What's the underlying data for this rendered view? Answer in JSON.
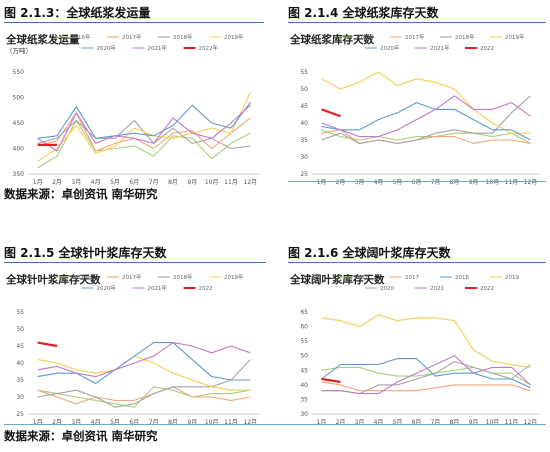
{
  "figures": [
    {
      "label": "图 2.1.3：全球纸浆发运量"
    },
    {
      "label": "图 2.1.4 全球纸浆库存天数"
    },
    {
      "label": "图 2.1.5 全球针叶浆库存天数"
    },
    {
      "label": "图 2.1.6 全球阔叶浆库存天数"
    }
  ],
  "source_top": "数据来源：卓创资讯  南华研究",
  "source_bottom": "数据来源：卓创资讯  南华研究",
  "chart_data": [
    {
      "type": "line",
      "title": "全球纸浆发运量",
      "unit": "（万吨）",
      "categories": [
        "1月",
        "2月",
        "3月",
        "4月",
        "5月",
        "6月",
        "7月",
        "8月",
        "9月",
        "10月",
        "11月",
        "12月"
      ],
      "ylim": [
        350,
        550
      ],
      "yticks": [
        350,
        400,
        450,
        500,
        550
      ],
      "legend_position": "top",
      "series": [
        {
          "name": "2016年",
          "color": "#a9cf7b",
          "values": [
            362,
            385,
            455,
            395,
            400,
            405,
            385,
            425,
            420,
            380,
            410,
            430
          ]
        },
        {
          "name": "2017年",
          "color": "#f0a77a",
          "values": [
            405,
            415,
            470,
            395,
            410,
            420,
            400,
            430,
            435,
            400,
            430,
            460
          ]
        },
        {
          "name": "2018年",
          "color": "#a5a5a5",
          "values": [
            410,
            420,
            455,
            420,
            420,
            455,
            410,
            440,
            410,
            420,
            400,
            405
          ]
        },
        {
          "name": "2019年",
          "color": "#f5cf52",
          "values": [
            375,
            400,
            445,
            390,
            405,
            440,
            425,
            420,
            430,
            440,
            430,
            510
          ]
        },
        {
          "name": "2020年",
          "color": "#5b9bd5",
          "values": [
            420,
            425,
            482,
            420,
            425,
            430,
            425,
            445,
            485,
            450,
            440,
            490
          ]
        },
        {
          "name": "2021年",
          "color": "#c578c8",
          "values": [
            420,
            395,
            470,
            410,
            425,
            420,
            410,
            460,
            430,
            420,
            450,
            485
          ]
        },
        {
          "name": "2022年",
          "color": "#e02020",
          "values": [
            407,
            407,
            null,
            null,
            null,
            null,
            null,
            null,
            null,
            null,
            null,
            null
          ]
        }
      ]
    },
    {
      "type": "line",
      "title": "全球纸浆库存天数",
      "categories": [
        "1月",
        "2月",
        "3月",
        "4月",
        "5月",
        "6月",
        "7月",
        "8月",
        "9月",
        "10月",
        "11月",
        "12月"
      ],
      "ylim": [
        25,
        55
      ],
      "yticks": [
        25,
        30,
        35,
        40,
        45,
        50,
        55
      ],
      "legend_position": "top",
      "series": [
        {
          "name": "2016年",
          "color": "#a9cf7b",
          "values": [
            38,
            36,
            35,
            36,
            35,
            36,
            36,
            37,
            37,
            36,
            37,
            34
          ]
        },
        {
          "name": "2017年",
          "color": "#f0a77a",
          "values": [
            37,
            38,
            34,
            35,
            34,
            35,
            36,
            36,
            34,
            35,
            35,
            34
          ]
        },
        {
          "name": "2018年",
          "color": "#a5a5a5",
          "values": [
            35,
            37,
            34,
            35,
            34,
            35,
            37,
            38,
            37,
            37,
            43,
            48
          ]
        },
        {
          "name": "2019年",
          "color": "#f5cf52",
          "values": [
            53,
            50,
            52,
            55,
            51,
            53,
            52,
            50,
            44,
            40,
            37,
            37
          ]
        },
        {
          "name": "2020年",
          "color": "#5b9bd5",
          "values": [
            39,
            38,
            38,
            41,
            43,
            46,
            44,
            44,
            41,
            38,
            38,
            35
          ]
        },
        {
          "name": "2021年",
          "color": "#c578c8",
          "values": [
            40,
            38,
            36,
            36,
            38,
            41,
            44,
            48,
            44,
            44,
            46,
            42
          ]
        },
        {
          "name": "2022",
          "color": "#e02020",
          "values": [
            44,
            42,
            null,
            null,
            null,
            null,
            null,
            null,
            null,
            null,
            null,
            null
          ]
        }
      ]
    },
    {
      "type": "line",
      "title": "全球针叶浆库存天数",
      "categories": [
        "1月",
        "2月",
        "3月",
        "4月",
        "5月",
        "6月",
        "7月",
        "8月",
        "9月",
        "10月",
        "11月",
        "12月"
      ],
      "ylim": [
        25,
        55
      ],
      "yticks": [
        25,
        30,
        35,
        40,
        45,
        50,
        55
      ],
      "legend_position": "top",
      "series": [
        {
          "name": "2016年",
          "color": "#a9cf7b",
          "values": [
            32,
            31,
            30,
            29,
            28,
            27,
            33,
            32,
            30,
            31,
            31,
            32
          ]
        },
        {
          "name": "2017年",
          "color": "#f0a77a",
          "values": [
            32,
            30,
            28,
            30,
            29,
            29,
            31,
            33,
            30,
            30,
            29,
            30
          ]
        },
        {
          "name": "2018年",
          "color": "#a5a5a5",
          "values": [
            30,
            31,
            32,
            30,
            27,
            28,
            31,
            33,
            33,
            33,
            35,
            41
          ]
        },
        {
          "name": "2019年",
          "color": "#f5cf52",
          "values": [
            41,
            40,
            38,
            37,
            38,
            42,
            40,
            37,
            35,
            33,
            32,
            32
          ]
        },
        {
          "name": "2020年",
          "color": "#5b9bd5",
          "values": [
            36,
            37,
            37,
            34,
            38,
            42,
            46,
            46,
            41,
            36,
            35,
            35
          ]
        },
        {
          "name": "2021年",
          "color": "#c578c8",
          "values": [
            38,
            39,
            37,
            36,
            38,
            40,
            42,
            46,
            45,
            43,
            45,
            43
          ]
        },
        {
          "name": "2022",
          "color": "#e02020",
          "values": [
            46,
            45,
            null,
            null,
            null,
            null,
            null,
            null,
            null,
            null,
            null,
            null
          ]
        }
      ]
    },
    {
      "type": "line",
      "title": "全球阔叶浆库存天数",
      "categories": [
        "1月",
        "2月",
        "3月",
        "4月",
        "5月",
        "6月",
        "7月",
        "8月",
        "9月",
        "10月",
        "11月",
        "12月"
      ],
      "ylim": [
        30,
        65
      ],
      "yticks": [
        30,
        35,
        40,
        45,
        50,
        55,
        60,
        65
      ],
      "legend_position": "top",
      "series": [
        {
          "name": "2016",
          "color": "#a9cf7b",
          "values": [
            45,
            46,
            46,
            44,
            43,
            43,
            44,
            45,
            46,
            44,
            44,
            40
          ]
        },
        {
          "name": "2017",
          "color": "#f0a77a",
          "values": [
            41,
            40,
            38,
            38,
            38,
            38,
            39,
            40,
            40,
            40,
            40,
            38
          ]
        },
        {
          "name": "2018",
          "color": "#5b9bd5",
          "values": [
            42,
            47,
            47,
            47,
            49,
            49,
            43,
            44,
            44,
            42,
            42,
            39
          ]
        },
        {
          "name": "2019",
          "color": "#f5cf52",
          "values": [
            63,
            62,
            60,
            64,
            62,
            63,
            63,
            62,
            52,
            48,
            47,
            46
          ]
        },
        {
          "name": "2020",
          "color": "#a5a5a5",
          "values": [
            38,
            38,
            37,
            40,
            40,
            42,
            44,
            48,
            46,
            44,
            42,
            47
          ]
        },
        {
          "name": "2021",
          "color": "#c578c8",
          "values": [
            38,
            38,
            37,
            37,
            41,
            44,
            47,
            50,
            44,
            46,
            46,
            40
          ]
        },
        {
          "name": "2022",
          "color": "#e02020",
          "values": [
            42,
            41,
            null,
            null,
            null,
            null,
            null,
            null,
            null,
            null,
            null,
            null
          ]
        }
      ]
    }
  ]
}
